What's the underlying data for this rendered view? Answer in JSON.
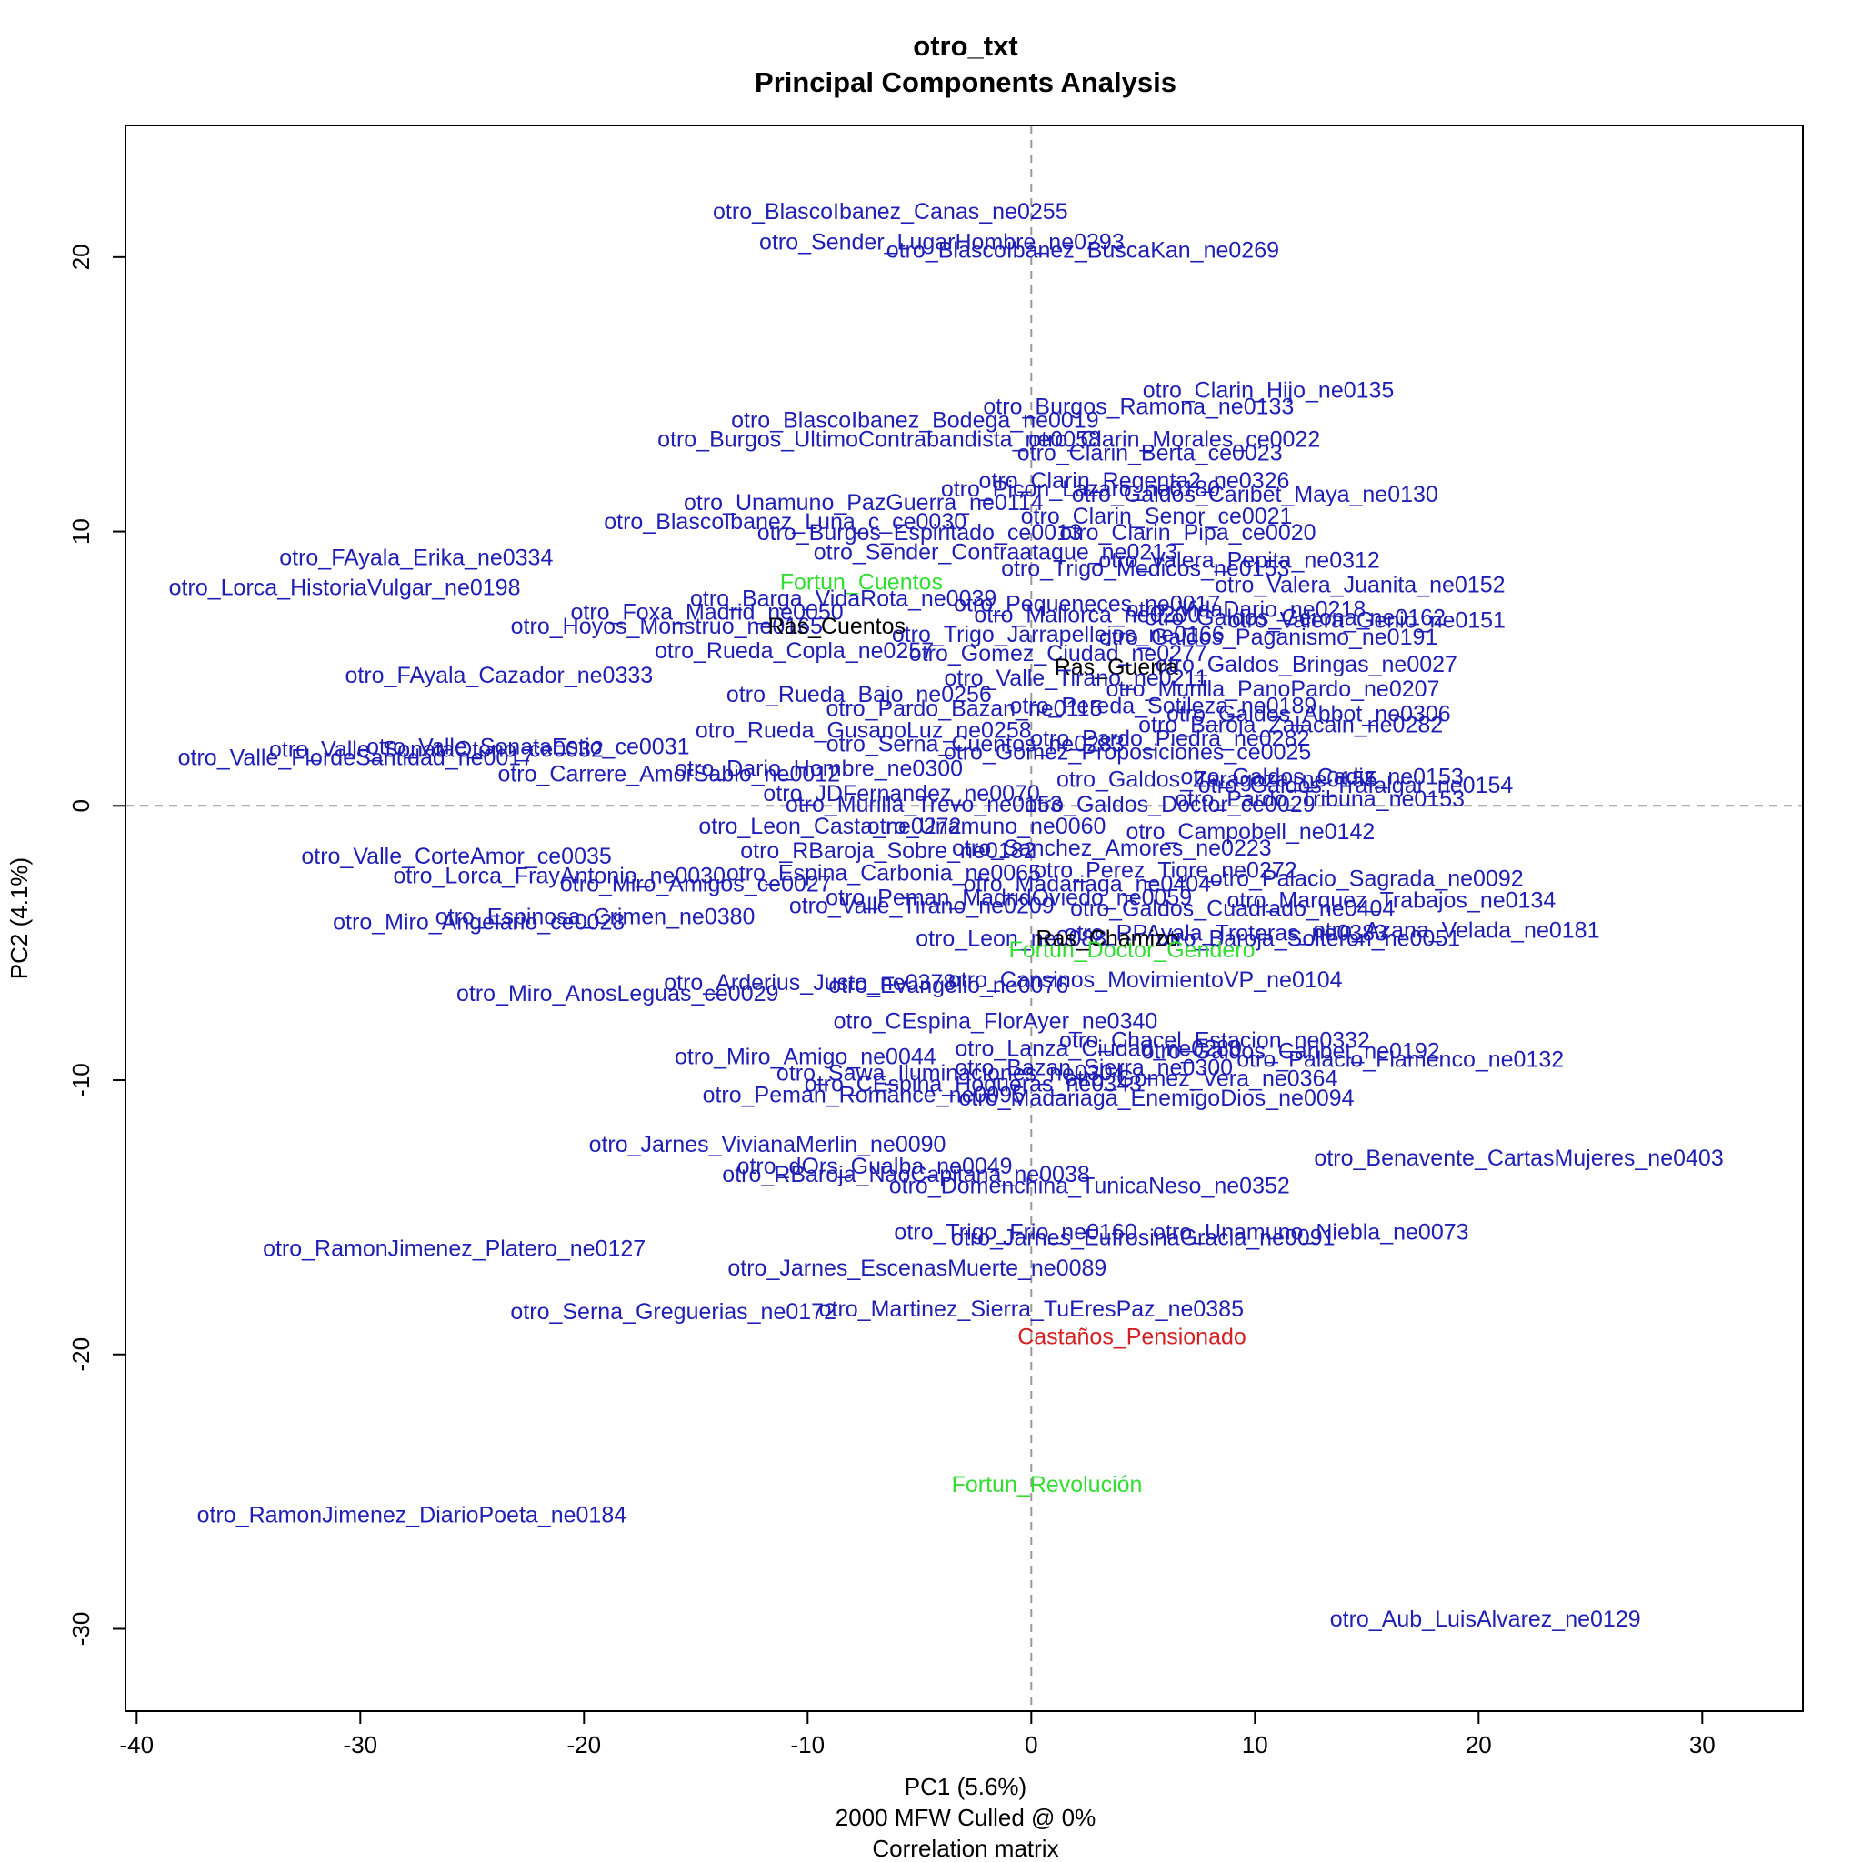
{
  "chart_data": {
    "type": "scatter",
    "title": "otro_txt",
    "subtitle": "Principal Components Analysis",
    "xlabel": "PC1 (5.6%)",
    "xlabel_notes": [
      "2000 MFW  Culled @ 0%",
      "Correlation matrix"
    ],
    "ylabel": "PC2 (4.1%)",
    "xlim": [
      -40.5,
      34.5
    ],
    "ylim": [
      -33,
      24.8
    ],
    "xticks": [
      -40,
      -30,
      -20,
      -10,
      0,
      10,
      20,
      30
    ],
    "yticks": [
      -30,
      -20,
      -10,
      0,
      10,
      20
    ],
    "grid": false,
    "zero_lines": true,
    "colors": {
      "otro": "#1f1fb4",
      "fortun": "#33dd33",
      "ras": "#000000",
      "castanos": "#d42020",
      "axis": "#000000",
      "zero_line": "#999999"
    },
    "points": [
      {
        "label": "otro_BlascoIbanez_Canas_ne0255",
        "x": -6.3,
        "y": 21.6,
        "group": "otro"
      },
      {
        "label": "otro_Sender_LugarHombre_ne0293",
        "x": -4.0,
        "y": 20.5,
        "group": "otro"
      },
      {
        "label": "otro_BlascoIbanez_BuscaKan_ne0269",
        "x": 2.3,
        "y": 20.2,
        "group": "otro"
      },
      {
        "label": "otro_Clarin_Hijo_ne0135",
        "x": 10.6,
        "y": 15.1,
        "group": "otro"
      },
      {
        "label": "otro_Burgos_Ramona_ne0133",
        "x": 4.8,
        "y": 14.5,
        "group": "otro"
      },
      {
        "label": "otro_BlascoIbanez_Bodega_ne0019",
        "x": -5.2,
        "y": 14.0,
        "group": "otro"
      },
      {
        "label": "otro_Burgos_UltimoContrabandista_ne0058",
        "x": -6.8,
        "y": 13.3,
        "group": "otro"
      },
      {
        "label": "otro_Clarin_Morales_ce0022",
        "x": 6.4,
        "y": 13.3,
        "group": "otro"
      },
      {
        "label": "otro_Clarin_Berta_ce0023",
        "x": 5.3,
        "y": 12.8,
        "group": "otro"
      },
      {
        "label": "otro_Clarin_Regenta2_ne0326",
        "x": 4.6,
        "y": 11.8,
        "group": "otro"
      },
      {
        "label": "otro_Picon_Lazaro_ne0180",
        "x": 2.2,
        "y": 11.5,
        "group": "otro"
      },
      {
        "label": "otro_Galdos_Caribet_Maya_ne0130",
        "x": 10.0,
        "y": 11.3,
        "group": "otro"
      },
      {
        "label": "otro_Unamuno_PazGuerra_ne0114",
        "x": -7.5,
        "y": 11.0,
        "group": "otro"
      },
      {
        "label": "otro_Clarin_Senor_ce0021",
        "x": 5.6,
        "y": 10.5,
        "group": "otro"
      },
      {
        "label": "otro_BlascoIbanez_Luna_c_ce0030",
        "x": -11.0,
        "y": 10.3,
        "group": "otro"
      },
      {
        "label": "otro_Burgos_Espiritado_ce0013",
        "x": -5.0,
        "y": 9.9,
        "group": "otro"
      },
      {
        "label": "otro_Clarin_Pipa_ce0020",
        "x": 7.0,
        "y": 9.9,
        "group": "otro"
      },
      {
        "label": "otro_Sender_Contraataque_ne0213",
        "x": -1.6,
        "y": 9.2,
        "group": "otro"
      },
      {
        "label": "otro_FAyala_Erika_ne0334",
        "x": -27.5,
        "y": 9.0,
        "group": "otro"
      },
      {
        "label": "otro_Valera_Pepita_ne0312",
        "x": 9.3,
        "y": 8.9,
        "group": "otro"
      },
      {
        "label": "otro_Trigo_Medicos_ne0153",
        "x": 5.1,
        "y": 8.6,
        "group": "otro"
      },
      {
        "label": "Fortun_Cuentos",
        "x": -7.6,
        "y": 8.1,
        "group": "fortun"
      },
      {
        "label": "otro_Valera_Juanita_ne0152",
        "x": 14.7,
        "y": 8.0,
        "group": "otro"
      },
      {
        "label": "otro_Lorca_HistoriaVulgar_ne0198",
        "x": -30.7,
        "y": 7.9,
        "group": "otro"
      },
      {
        "label": "otro_Barga_VidaRota_ne0039",
        "x": -8.4,
        "y": 7.5,
        "group": "otro"
      },
      {
        "label": "otro_Pequeneces_ne0017",
        "x": 2.5,
        "y": 7.3,
        "group": "otro"
      },
      {
        "label": "otro_VidaDario_ne0218",
        "x": 9.6,
        "y": 7.1,
        "group": "otro"
      },
      {
        "label": "otro_Foxa_Madrid_ne0050",
        "x": -14.5,
        "y": 7.0,
        "group": "otro"
      },
      {
        "label": "otro_Mallorca_ne0200",
        "x": 2.5,
        "y": 6.9,
        "group": "otro"
      },
      {
        "label": "otro_Galdos_Gerona_ne0162",
        "x": 11.8,
        "y": 6.8,
        "group": "otro"
      },
      {
        "label": "otro_Valera_Genio_ne0151",
        "x": 15.0,
        "y": 6.7,
        "group": "otro"
      },
      {
        "label": "otro_Hoyos_Monstruo_ne0165",
        "x": -16.3,
        "y": 6.5,
        "group": "otro"
      },
      {
        "label": "Ras_Cuentos",
        "x": -8.7,
        "y": 6.5,
        "group": "ras"
      },
      {
        "label": "otro_Trigo_Jarrapellejos_ne0166",
        "x": 1.2,
        "y": 6.2,
        "group": "otro"
      },
      {
        "label": "otro_Galdos_Paganismo_ne0191",
        "x": 10.6,
        "y": 6.1,
        "group": "otro"
      },
      {
        "label": "otro_Rueda_Copla_ne0257",
        "x": -10.6,
        "y": 5.6,
        "group": "otro"
      },
      {
        "label": "otro_Gomez_Ciudad_ne0277",
        "x": 1.2,
        "y": 5.5,
        "group": "otro"
      },
      {
        "label": "otro_Galdos_Bringas_ne0027",
        "x": 12.3,
        "y": 5.1,
        "group": "otro"
      },
      {
        "label": "Ras_Guerra",
        "x": 3.8,
        "y": 5.0,
        "group": "ras"
      },
      {
        "label": "otro_FAyala_Cazador_ne0333",
        "x": -23.8,
        "y": 4.7,
        "group": "otro"
      },
      {
        "label": "otro_Valle_Tirano_ne0211",
        "x": 2.0,
        "y": 4.6,
        "group": "otro"
      },
      {
        "label": "otro_Murilla_PanoPardo_ne0207",
        "x": 10.8,
        "y": 4.2,
        "group": "otro"
      },
      {
        "label": "otro_Rueda_Bajo_ne0256",
        "x": -7.7,
        "y": 4.0,
        "group": "otro"
      },
      {
        "label": "otro_Pereda_Sotileza_ne0189",
        "x": 5.9,
        "y": 3.6,
        "group": "otro"
      },
      {
        "label": "otro_Galdos_Abbot_ne0306",
        "x": 12.4,
        "y": 3.3,
        "group": "otro"
      },
      {
        "label": "otro_Pardo_Bazan_ne0115",
        "x": -3.0,
        "y": 3.5,
        "group": "otro"
      },
      {
        "label": "otro_Rueda_GusanoLuz_ne0258",
        "x": -7.5,
        "y": 2.7,
        "group": "otro"
      },
      {
        "label": "otro_Baroja_Zalacain_ne0282",
        "x": 11.6,
        "y": 2.9,
        "group": "otro"
      },
      {
        "label": "otro_Valle_SonataEstio_ce0031",
        "x": -22.5,
        "y": 2.1,
        "group": "otro"
      },
      {
        "label": "otro_Valle_SonataOtono_ce0032",
        "x": -26.6,
        "y": 2.0,
        "group": "otro"
      },
      {
        "label": "otro_Serna_Cuentos_ne0283",
        "x": -2.5,
        "y": 2.2,
        "group": "otro"
      },
      {
        "label": "otro_Pardo_Piedra_ne0282",
        "x": 6.2,
        "y": 2.4,
        "group": "otro"
      },
      {
        "label": "otro_Valle_FlordeSantidad_ne0017",
        "x": -30.2,
        "y": 1.7,
        "group": "otro"
      },
      {
        "label": "otro_Gomez_Proposiciones_ce0025",
        "x": 4.3,
        "y": 1.9,
        "group": "otro"
      },
      {
        "label": "otro_Carrere_AmorSabio_ne0012",
        "x": -16.2,
        "y": 1.1,
        "group": "otro"
      },
      {
        "label": "otro_Dario_Hombre_ne0300",
        "x": -9.5,
        "y": 1.3,
        "group": "otro"
      },
      {
        "label": "otro_Galdos_Cadiz_ne0153",
        "x": 13.0,
        "y": 1.0,
        "group": "otro"
      },
      {
        "label": "otro_Galdos_Trafalgar_ne0154",
        "x": 14.5,
        "y": 0.7,
        "group": "otro"
      },
      {
        "label": "otro_Galdos_Zaragoza_ne0155",
        "x": 8.3,
        "y": 0.9,
        "group": "otro"
      },
      {
        "label": "otro_Pardo_Tribuna_ne0153",
        "x": 12.9,
        "y": 0.2,
        "group": "otro"
      },
      {
        "label": "otro_JDFernandez_ne0070",
        "x": -5.8,
        "y": 0.4,
        "group": "otro"
      },
      {
        "label": "otro_Murilla_Trevo_ne0153",
        "x": -4.8,
        "y": 0.0,
        "group": "otro"
      },
      {
        "label": "otro_Galdos_Doctor_ce0029",
        "x": 6.2,
        "y": 0.0,
        "group": "otro"
      },
      {
        "label": "otro_Leon_Casta_ne0272",
        "x": -9.0,
        "y": -0.8,
        "group": "otro"
      },
      {
        "label": "otro_Unamuno_ne0060",
        "x": -2.0,
        "y": -0.8,
        "group": "otro"
      },
      {
        "label": "otro_Campobell_ne0142",
        "x": 9.8,
        "y": -1.0,
        "group": "otro"
      },
      {
        "label": "otro_Valle_CorteAmor_ce0035",
        "x": -25.7,
        "y": -1.9,
        "group": "otro"
      },
      {
        "label": "otro_RBaroja_Sobre_ne0182",
        "x": -6.4,
        "y": -1.7,
        "group": "otro"
      },
      {
        "label": "otro_Sanchez_Amores_ne0223",
        "x": 3.6,
        "y": -1.6,
        "group": "otro"
      },
      {
        "label": "otro_Perez_Tigre_ne0272",
        "x": 6.0,
        "y": -2.4,
        "group": "otro"
      },
      {
        "label": "otro_Lorca_FrayAntonio_ne0030",
        "x": -21.1,
        "y": -2.6,
        "group": "otro"
      },
      {
        "label": "otro_Espina_Carbonia_ne0065",
        "x": -6.6,
        "y": -2.5,
        "group": "otro"
      },
      {
        "label": "otro_Miro_Amigos_ce0027",
        "x": -15.0,
        "y": -2.9,
        "group": "otro"
      },
      {
        "label": "otro_Madariaga_ne0404",
        "x": 2.5,
        "y": -2.9,
        "group": "otro"
      },
      {
        "label": "otro_Palacio_Sagrada_ne0092",
        "x": 15.0,
        "y": -2.7,
        "group": "otro"
      },
      {
        "label": "otro_Marquez_Trabajos_ne0134",
        "x": 16.1,
        "y": -3.5,
        "group": "otro"
      },
      {
        "label": "otro_Peman_MadridOviedo_ne0059",
        "x": -1.0,
        "y": -3.4,
        "group": "otro"
      },
      {
        "label": "otro_Valle_Tirano_ne0209",
        "x": -4.9,
        "y": -3.7,
        "group": "otro"
      },
      {
        "label": "otro_Galdos_Cuadrado_ne0404",
        "x": 9.0,
        "y": -3.8,
        "group": "otro"
      },
      {
        "label": "otro_Miro_Angelario_ce0028",
        "x": -24.7,
        "y": -4.3,
        "group": "otro"
      },
      {
        "label": "otro_Espinosa_Crimen_ne0380",
        "x": -19.5,
        "y": -4.1,
        "group": "otro"
      },
      {
        "label": "otro_Azana_Velada_ne0181",
        "x": 19.0,
        "y": -4.6,
        "group": "otro"
      },
      {
        "label": "otro_RPAyala_Troteras_ne0383",
        "x": 8.7,
        "y": -4.7,
        "group": "otro"
      },
      {
        "label": "otro_Baroja_Solteron_ne0051",
        "x": 12.4,
        "y": -4.9,
        "group": "otro"
      },
      {
        "label": "otro_Leon_ne0088",
        "x": -0.9,
        "y": -4.9,
        "group": "otro"
      },
      {
        "label": "Ras_Chamizo",
        "x": 3.4,
        "y": -4.9,
        "group": "ras"
      },
      {
        "label": "Fortun_Doctor_Gendero",
        "x": 4.5,
        "y": -5.3,
        "group": "fortun"
      },
      {
        "label": "otro_Arderius_Justo_ne0378",
        "x": -9.9,
        "y": -6.5,
        "group": "otro"
      },
      {
        "label": "otro_Cansinos_MovimientoVP_ne0104",
        "x": 5.1,
        "y": -6.4,
        "group": "otro"
      },
      {
        "label": "otro_Miro_AnosLeguas_ce0029",
        "x": -18.5,
        "y": -6.9,
        "group": "otro"
      },
      {
        "label": "otro_Evangelio_ne0076",
        "x": -3.7,
        "y": -6.6,
        "group": "otro"
      },
      {
        "label": "otro_CEspina_FlorAyer_ne0340",
        "x": -1.6,
        "y": -7.9,
        "group": "otro"
      },
      {
        "label": "otro_Chacel_Estacion_ne0332",
        "x": 8.2,
        "y": -8.6,
        "group": "otro"
      },
      {
        "label": "otro_Miro_Amigo_ne0044",
        "x": -10.1,
        "y": -9.2,
        "group": "otro"
      },
      {
        "label": "otro_Lanza_Ciudad_ne0280",
        "x": 3.0,
        "y": -8.9,
        "group": "otro"
      },
      {
        "label": "otro_Galdos_Caribet_ne0192",
        "x": 11.6,
        "y": -9.0,
        "group": "otro"
      },
      {
        "label": "otro_Palacio_Flamenco_ne0132",
        "x": 16.5,
        "y": -9.3,
        "group": "otro"
      },
      {
        "label": "otro_Bazan_Sierra_ne0300",
        "x": 2.8,
        "y": -9.6,
        "group": "otro"
      },
      {
        "label": "otro_Sawa_Iluminaciones_ne0304",
        "x": -3.6,
        "y": -9.8,
        "group": "otro"
      },
      {
        "label": "otro_Gomez_Vera_ne0364",
        "x": 7.6,
        "y": -10.0,
        "group": "otro"
      },
      {
        "label": "otro_CEspina_Hogueras_ne0343",
        "x": -2.6,
        "y": -10.2,
        "group": "otro"
      },
      {
        "label": "otro_Peman_Romance_ne0095",
        "x": -7.5,
        "y": -10.6,
        "group": "otro"
      },
      {
        "label": "otro_Madariaga_EnemigoDios_ne0094",
        "x": 5.6,
        "y": -10.7,
        "group": "otro"
      },
      {
        "label": "otro_Jarnes_VivianaMerlin_ne0090",
        "x": -11.8,
        "y": -12.4,
        "group": "otro"
      },
      {
        "label": "otro_Benavente_CartasMujeres_ne0403",
        "x": 21.8,
        "y": -12.9,
        "group": "otro"
      },
      {
        "label": "otro_dOrs_Gualba_ne0049",
        "x": -7.0,
        "y": -13.2,
        "group": "otro"
      },
      {
        "label": "otro_RBaroja_NaoCapitana_ne0038",
        "x": -5.6,
        "y": -13.5,
        "group": "otro"
      },
      {
        "label": "otro_Domenchina_TunicaNeso_ne0352",
        "x": 2.6,
        "y": -13.9,
        "group": "otro"
      },
      {
        "label": "otro_Trigo_Frio_ne0160",
        "x": -0.7,
        "y": -15.6,
        "group": "otro"
      },
      {
        "label": "otro_Unamuno_Niebla_ne0073",
        "x": 12.5,
        "y": -15.6,
        "group": "otro"
      },
      {
        "label": "otro_Jarnes_EufrosinaGracia_ne0091",
        "x": 5.0,
        "y": -15.8,
        "group": "otro"
      },
      {
        "label": "otro_RamonJimenez_Platero_ne0127",
        "x": -25.8,
        "y": -16.2,
        "group": "otro"
      },
      {
        "label": "otro_Jarnes_EscenasMuerte_ne0089",
        "x": -5.1,
        "y": -16.9,
        "group": "otro"
      },
      {
        "label": "otro_Serna_Greguerias_ne0172",
        "x": -16.0,
        "y": -18.5,
        "group": "otro"
      },
      {
        "label": "otro_Martinez_Sierra_TuEresPaz_ne0385",
        "x": 0.0,
        "y": -18.4,
        "group": "otro"
      },
      {
        "label": "Castaños_Pensionado",
        "x": 4.5,
        "y": -19.4,
        "group": "castanos"
      },
      {
        "label": "Fortun_Revolución",
        "x": 0.7,
        "y": -24.8,
        "group": "fortun"
      },
      {
        "label": "otro_RamonJimenez_DiarioPoeta_ne0184",
        "x": -27.7,
        "y": -25.9,
        "group": "otro"
      },
      {
        "label": "otro_Aub_LuisAlvarez_ne0129",
        "x": 20.3,
        "y": -29.7,
        "group": "otro"
      }
    ]
  }
}
